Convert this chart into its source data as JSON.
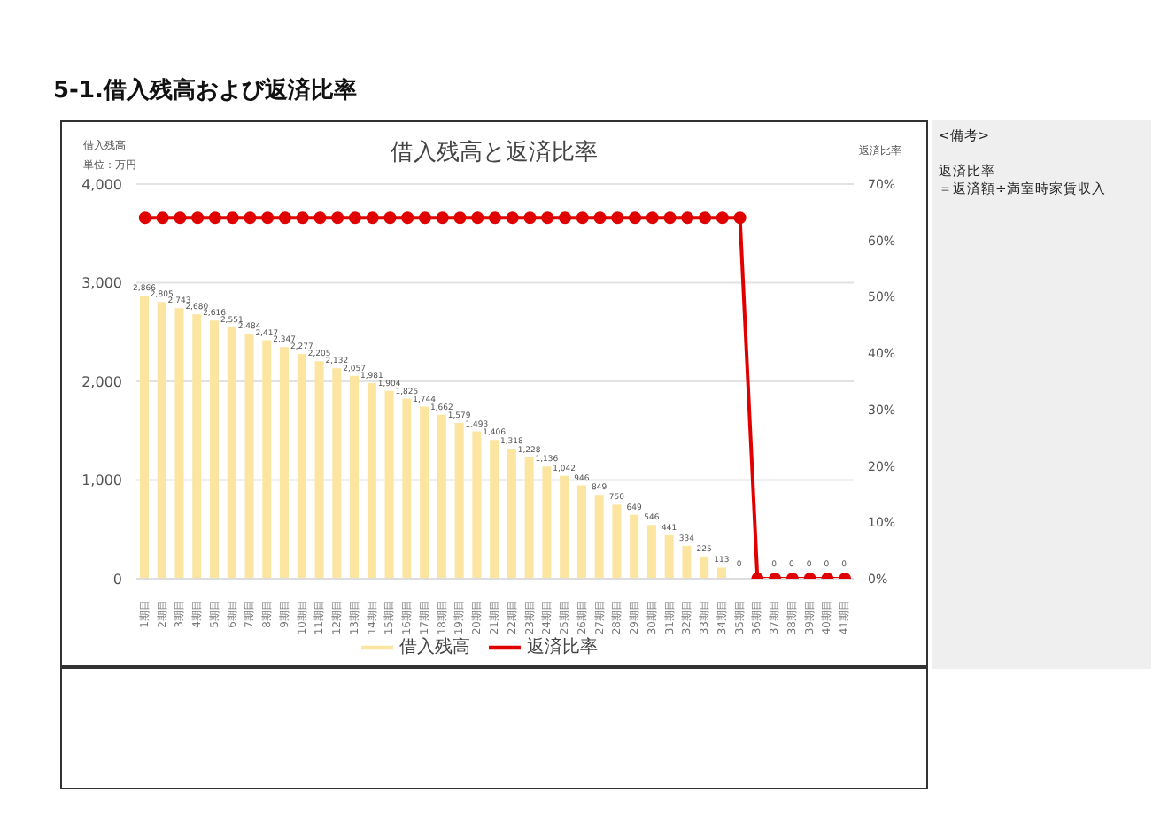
{
  "chart_data": {
    "type": "bar",
    "title": "5-1.借入残高および返済比率",
    "subtitle": "借入残高と返済比率",
    "ylabel": "借入残高",
    "y2label": "返済比率",
    "annotations": [
      "単位：万円",
      "<備考>",
      "返済比率",
      "＝返済額÷満室時家賃収入"
    ],
    "categories": [
      "1期目",
      "2期目",
      "3期目",
      "4期目",
      "5期目",
      "6期目",
      "7期目",
      "8期目",
      "9期目",
      "10期目",
      "11期目",
      "12期目",
      "13期目",
      "14期目",
      "15期目",
      "16期目",
      "17期目",
      "18期目",
      "19期目",
      "20期目",
      "21期目",
      "22期目",
      "23期目",
      "24期目",
      "25期目",
      "26期目",
      "27期目",
      "28期目",
      "29期目",
      "30期目",
      "31期目",
      "32期目",
      "33期目",
      "34期目",
      "35期目",
      "36期目",
      "37期目",
      "38期目",
      "39期目",
      "40期目",
      "41期目"
    ],
    "series": [
      {
        "name": "借入残高",
        "color": "#fbe5a0",
        "values": [
          2866,
          2805,
          2743,
          2680,
          2616,
          2551,
          2484,
          2417,
          2347,
          2277,
          2205,
          2132,
          2057,
          1981,
          1904,
          1825,
          1744,
          1662,
          1579,
          1493,
          1406,
          1318,
          1228,
          1136,
          1042,
          946,
          849,
          750,
          649,
          546,
          441,
          334,
          225,
          113,
          0,
          0,
          0,
          0,
          0,
          0,
          0
        ],
        "value_labels": [
          "2,866",
          "2,805",
          "2,743",
          "2,680",
          "2,616",
          "2,551",
          "2,484",
          "2,417",
          "2,347",
          "2,277",
          "2,205",
          "2,132",
          "2,057",
          "1,981",
          "1,904",
          "1,825",
          "1,744",
          "1,662",
          "1,579",
          "1,493",
          "1,406",
          "1,318",
          "1,228",
          "1,136",
          "1,042",
          "946",
          "849",
          "750",
          "649",
          "546",
          "441",
          "334",
          "225",
          "113",
          "0",
          null,
          "0",
          "0",
          "0",
          "0",
          "0"
        ]
      },
      {
        "name": "返済比率",
        "type": "line",
        "axis": "y2",
        "color": "#e00000",
        "values": [
          64,
          64,
          64,
          64,
          64,
          64,
          64,
          64,
          64,
          64,
          64,
          64,
          64,
          64,
          64,
          64,
          64,
          64,
          64,
          64,
          64,
          64,
          64,
          64,
          64,
          64,
          64,
          64,
          64,
          64,
          64,
          64,
          64,
          64,
          64,
          0,
          0,
          0,
          0,
          0,
          0
        ]
      }
    ],
    "ylim": [
      0,
      4000
    ],
    "yticks": [
      {
        "value": 0,
        "label": "0"
      },
      {
        "value": 1000,
        "label": "1,000"
      },
      {
        "value": 2000,
        "label": "2,000"
      },
      {
        "value": 3000,
        "label": "3,000"
      },
      {
        "value": 4000,
        "label": "4,000"
      }
    ],
    "y2lim": [
      0,
      70
    ],
    "y2ticks": [
      {
        "value": 0,
        "label": "0%"
      },
      {
        "value": 10,
        "label": "10%"
      },
      {
        "value": 20,
        "label": "20%"
      },
      {
        "value": 30,
        "label": "30%"
      },
      {
        "value": 40,
        "label": "40%"
      },
      {
        "value": 50,
        "label": "50%"
      },
      {
        "value": 60,
        "label": "60%"
      },
      {
        "value": 70,
        "label": "70%"
      }
    ],
    "grid": "y",
    "legend": "bottom",
    "marker": "circle",
    "line_style": "solid"
  }
}
